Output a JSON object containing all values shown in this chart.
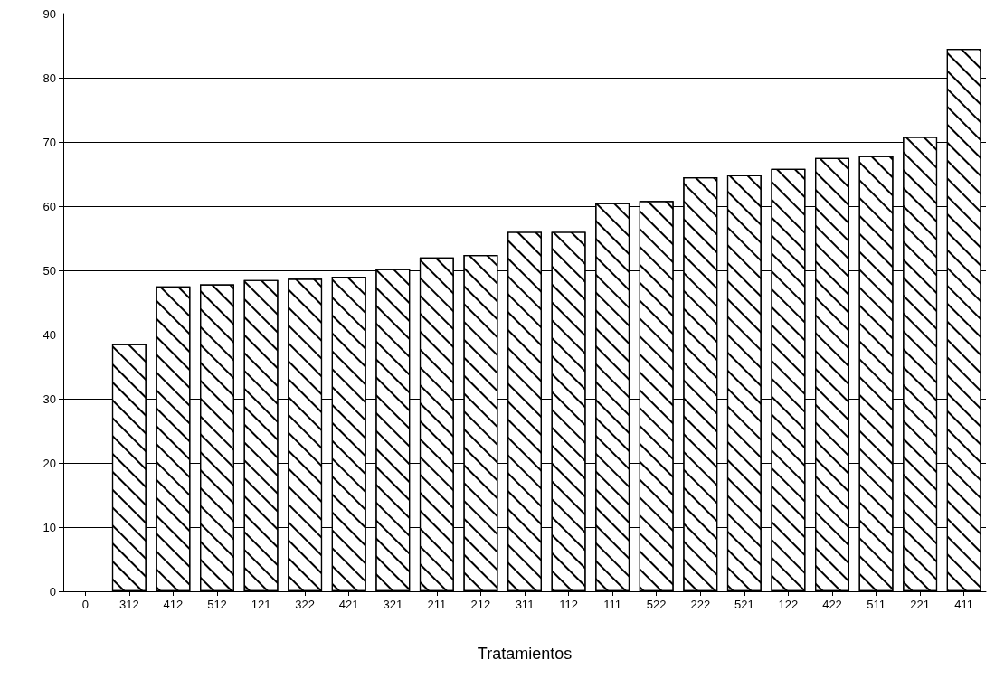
{
  "chart_data": {
    "type": "bar",
    "xlabel": "Tratamientos",
    "categories": [
      "0",
      "312",
      "412",
      "512",
      "121",
      "322",
      "421",
      "321",
      "211",
      "212",
      "311",
      "112",
      "111",
      "522",
      "222",
      "521",
      "122",
      "422",
      "511",
      "221",
      "411"
    ],
    "values": [
      null,
      38.5,
      47.5,
      47.8,
      48.5,
      48.7,
      49,
      50.2,
      52,
      52.4,
      56,
      56,
      60.5,
      60.8,
      64.5,
      64.8,
      65.8,
      67.5,
      67.8,
      70.8,
      84.5
    ],
    "color": "#ffffff",
    "ylim": [
      0,
      90
    ],
    "yticks": [
      0,
      10,
      20,
      30,
      40,
      50,
      60,
      70,
      80,
      90
    ],
    "grid": "y"
  }
}
